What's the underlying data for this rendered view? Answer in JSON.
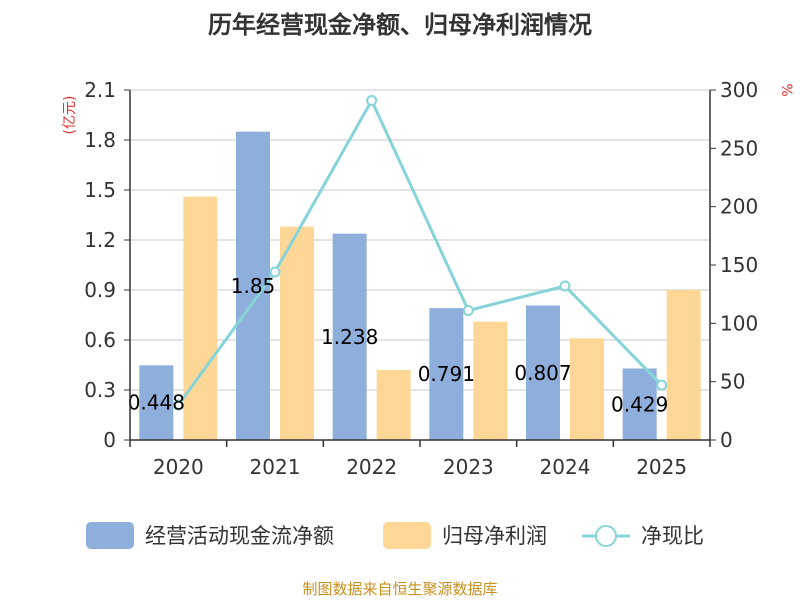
{
  "chart_data": {
    "type": "bar",
    "title": "历年经营现金净额、归母净利润情况",
    "categories": [
      "2020",
      "2021",
      "2022",
      "2023",
      "2024",
      "2025"
    ],
    "y_left": {
      "unit": "(亿元)",
      "ticks": [
        "0",
        "0.3",
        "0.6",
        "0.9",
        "1.2",
        "1.5",
        "1.8",
        "2.1"
      ],
      "ylim": [
        0,
        2.1
      ]
    },
    "y_right": {
      "unit": "%",
      "ticks": [
        "0",
        "50",
        "100",
        "150",
        "200",
        "250",
        "300"
      ],
      "ylim": [
        0,
        300
      ]
    },
    "series": [
      {
        "name": "经营活动现金流净额",
        "type": "bar",
        "axis": "left",
        "values": [
          0.448,
          1.85,
          1.238,
          0.791,
          0.807,
          0.429
        ],
        "labels": [
          "0.448",
          "1.85",
          "1.238",
          "0.791",
          "0.807",
          "0.429"
        ]
      },
      {
        "name": "归母净利润",
        "type": "bar",
        "axis": "left",
        "values": [
          1.46,
          1.28,
          0.42,
          0.71,
          0.61,
          0.9
        ]
      },
      {
        "name": "净现比",
        "type": "line",
        "axis": "right",
        "values": [
          30,
          144,
          291,
          111,
          132,
          47
        ]
      }
    ],
    "colors": {
      "cash": "#8eaedb",
      "profit": "#fed797",
      "ratio": "#86d4d8"
    },
    "source": "制图数据来自恒生聚源数据库"
  }
}
